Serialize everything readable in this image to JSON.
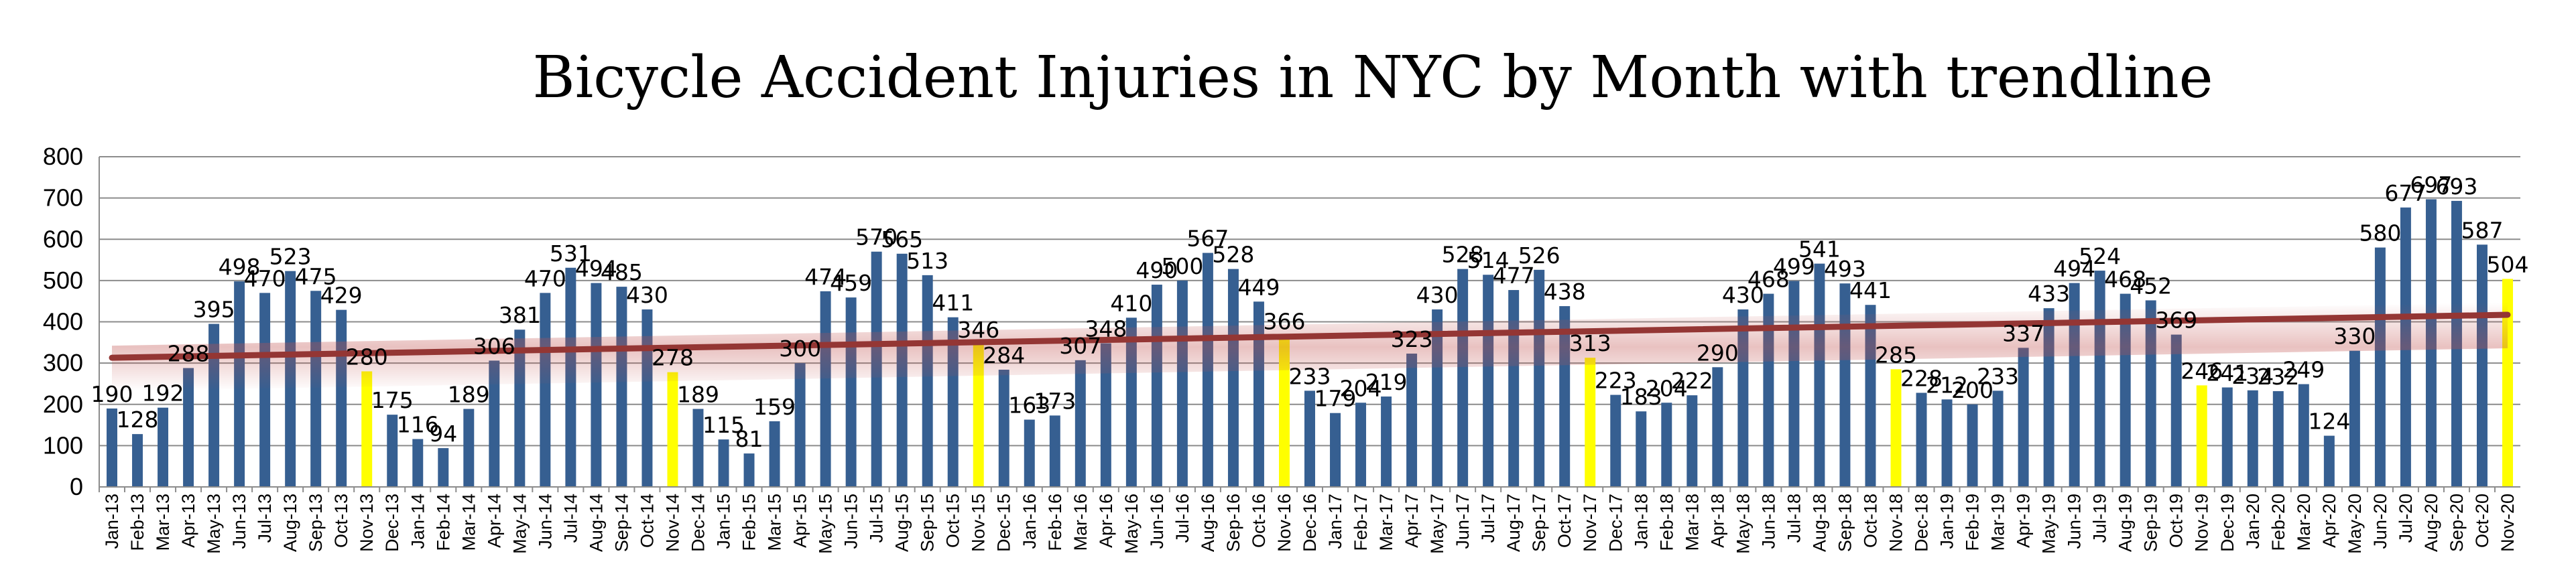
{
  "chart_data": {
    "type": "bar",
    "title": "Bicycle Accident Injuries in NYC by Month with trendline",
    "xlabel": "",
    "ylabel": "",
    "ylim": [
      0,
      800
    ],
    "yticks": [
      0,
      100,
      200,
      300,
      400,
      500,
      600,
      700,
      800
    ],
    "grid": true,
    "legend": "none",
    "categories": [
      "Jan-13",
      "Feb-13",
      "Mar-13",
      "Apr-13",
      "May-13",
      "Jun-13",
      "Jul-13",
      "Aug-13",
      "Sep-13",
      "Oct-13",
      "Nov-13",
      "Dec-13",
      "Jan-14",
      "Feb-14",
      "Mar-14",
      "Apr-14",
      "May-14",
      "Jun-14",
      "Jul-14",
      "Aug-14",
      "Sep-14",
      "Oct-14",
      "Nov-14",
      "Dec-14",
      "Jan-15",
      "Feb-15",
      "Mar-15",
      "Apr-15",
      "May-15",
      "Jun-15",
      "Jul-15",
      "Aug-15",
      "Sep-15",
      "Oct-15",
      "Nov-15",
      "Dec-15",
      "Jan-16",
      "Feb-16",
      "Mar-16",
      "Apr-16",
      "May-16",
      "Jun-16",
      "Jul-16",
      "Aug-16",
      "Sep-16",
      "Oct-16",
      "Nov-16",
      "Dec-16",
      "Jan-17",
      "Feb-17",
      "Mar-17",
      "Apr-17",
      "May-17",
      "Jun-17",
      "Jul-17",
      "Aug-17",
      "Sep-17",
      "Oct-17",
      "Nov-17",
      "Dec-17",
      "Jan-18",
      "Feb-18",
      "Mar-18",
      "Apr-18",
      "May-18",
      "Jun-18",
      "Jul-18",
      "Aug-18",
      "Sep-18",
      "Oct-18",
      "Nov-18",
      "Dec-18",
      "Jan-19",
      "Feb-19",
      "Mar-19",
      "Apr-19",
      "May-19",
      "Jun-19",
      "Jul-19",
      "Aug-19",
      "Sep-19",
      "Oct-19",
      "Nov-19",
      "Dec-19",
      "Jan-20",
      "Feb-20",
      "Mar-20",
      "Apr-20",
      "May-20",
      "Jun-20",
      "Jul-20",
      "Aug-20",
      "Sep-20",
      "Oct-20",
      "Nov-20"
    ],
    "tick_labels": [
      "Jan-13",
      "Feb-13",
      "Mar-13",
      "Apr-13",
      "May-13",
      "Jun-13",
      "Jul-13",
      "Aug-13",
      "Sep-13",
      "Oct-13",
      "Nov-13",
      "Dec-13",
      "Jan-14",
      "Feb-14",
      "Mar-14",
      "Apr-14",
      "May-14",
      "Jun-14",
      "Jul-14",
      "Aug-14",
      "Sep-14",
      "Oct-14",
      "Nov-14",
      "Dec-14",
      "Jan-15",
      "Feb-15",
      "Mar-15",
      "Apr-15",
      "May-15",
      "Jun-15",
      "Jul-15",
      "Aug-15",
      "Sep-15",
      "Oct-15",
      "Nov-15",
      "Dec-15",
      "Jan-16",
      "Feb-16",
      "Mar-16",
      "Apr-16",
      "May-16",
      "Jun-16",
      "Jul-16",
      "Aug-16",
      "Sep-16",
      "Oct-16",
      "Nov-16",
      "Dec-16",
      "Jan-17",
      "Feb-17",
      "Mar-17",
      "Apr-17",
      "May-17",
      "Jun-17",
      "Jul-17",
      "Aug-17",
      "Sep-17",
      "Oct-17",
      "Nov-17",
      "Dec-17",
      "Jan-18",
      "Feb-18",
      "Mar-18",
      "Apr-18",
      "May-18",
      "Jun-18",
      "Jul-18",
      "Aug-18",
      "Sep-18",
      "Oct-18",
      "Nov-18",
      "Dec-18",
      "Jan-19",
      "Feb-19",
      "Mar-19",
      "Apr-19",
      "May-19",
      "Jun-19",
      "Jul-19",
      "Aug-19",
      "Sep-19",
      "Oct-19",
      "Nov-19",
      "Dec-19",
      "Jan-20",
      "Feb-20",
      "Mar-20",
      "Apr-20",
      "May-20",
      "Jun-20",
      "Jul-20",
      "Aug-20",
      "Sep-20",
      "Oct-20",
      "Nov-20"
    ],
    "values": [
      190,
      128,
      192,
      288,
      395,
      498,
      470,
      523,
      475,
      429,
      280,
      175,
      116,
      94,
      189,
      306,
      381,
      470,
      531,
      494,
      485,
      430,
      278,
      189,
      115,
      81,
      159,
      300,
      474,
      459,
      570,
      565,
      513,
      411,
      346,
      284,
      163,
      173,
      307,
      348,
      410,
      490,
      500,
      567,
      528,
      449,
      366,
      233,
      179,
      204,
      219,
      323,
      430,
      528,
      514,
      477,
      526,
      438,
      313,
      223,
      183,
      204,
      222,
      290,
      430,
      468,
      499,
      541,
      493,
      441,
      285,
      228,
      212,
      200,
      233,
      337,
      433,
      494,
      524,
      468,
      452,
      369,
      246,
      241,
      234,
      232,
      249,
      124,
      330,
      580,
      677,
      697,
      693,
      587,
      504
    ],
    "value_labels": [
      "190",
      "128",
      "192",
      "288",
      "395",
      "498",
      "470",
      "523",
      "475",
      "429",
      "280",
      "175",
      "116",
      "94",
      "189",
      "306",
      "381",
      "470",
      "531",
      "494",
      "485",
      "430",
      "278",
      "189",
      "115",
      "81",
      "159",
      "300",
      "474",
      "459",
      "570",
      "565",
      "513",
      "411",
      "346",
      "284",
      "163",
      "173",
      "307",
      "348",
      "410",
      "490",
      "500",
      "567",
      "528",
      "449",
      "366",
      "233",
      "179",
      "204",
      "219",
      "323",
      "430",
      "528",
      "514",
      "477",
      "526",
      "438",
      "313",
      "223",
      "183",
      "204",
      "222",
      "290",
      "430",
      "468",
      "499",
      "541",
      "493",
      "441",
      "285",
      "228",
      "212",
      "200",
      "233",
      "337",
      "433",
      "494",
      "524",
      "468",
      "452",
      "369",
      "246",
      "241",
      "234",
      "232",
      "249",
      "124",
      "330",
      "580",
      "677",
      "697",
      "693",
      "587",
      "504"
    ],
    "highlight_categories": [
      "Nov-13",
      "Nov-14",
      "Nov-15",
      "Nov-16",
      "Nov-17",
      "Nov-18",
      "Nov-19",
      "Nov-20"
    ],
    "trendline": {
      "type": "linear",
      "start_value": 313,
      "end_value": 417,
      "color": "#943634"
    },
    "colors": {
      "bar": "#365F91",
      "highlight": "#FFFF00",
      "trendline": "#943634",
      "grid": "#8C8C8C"
    }
  }
}
